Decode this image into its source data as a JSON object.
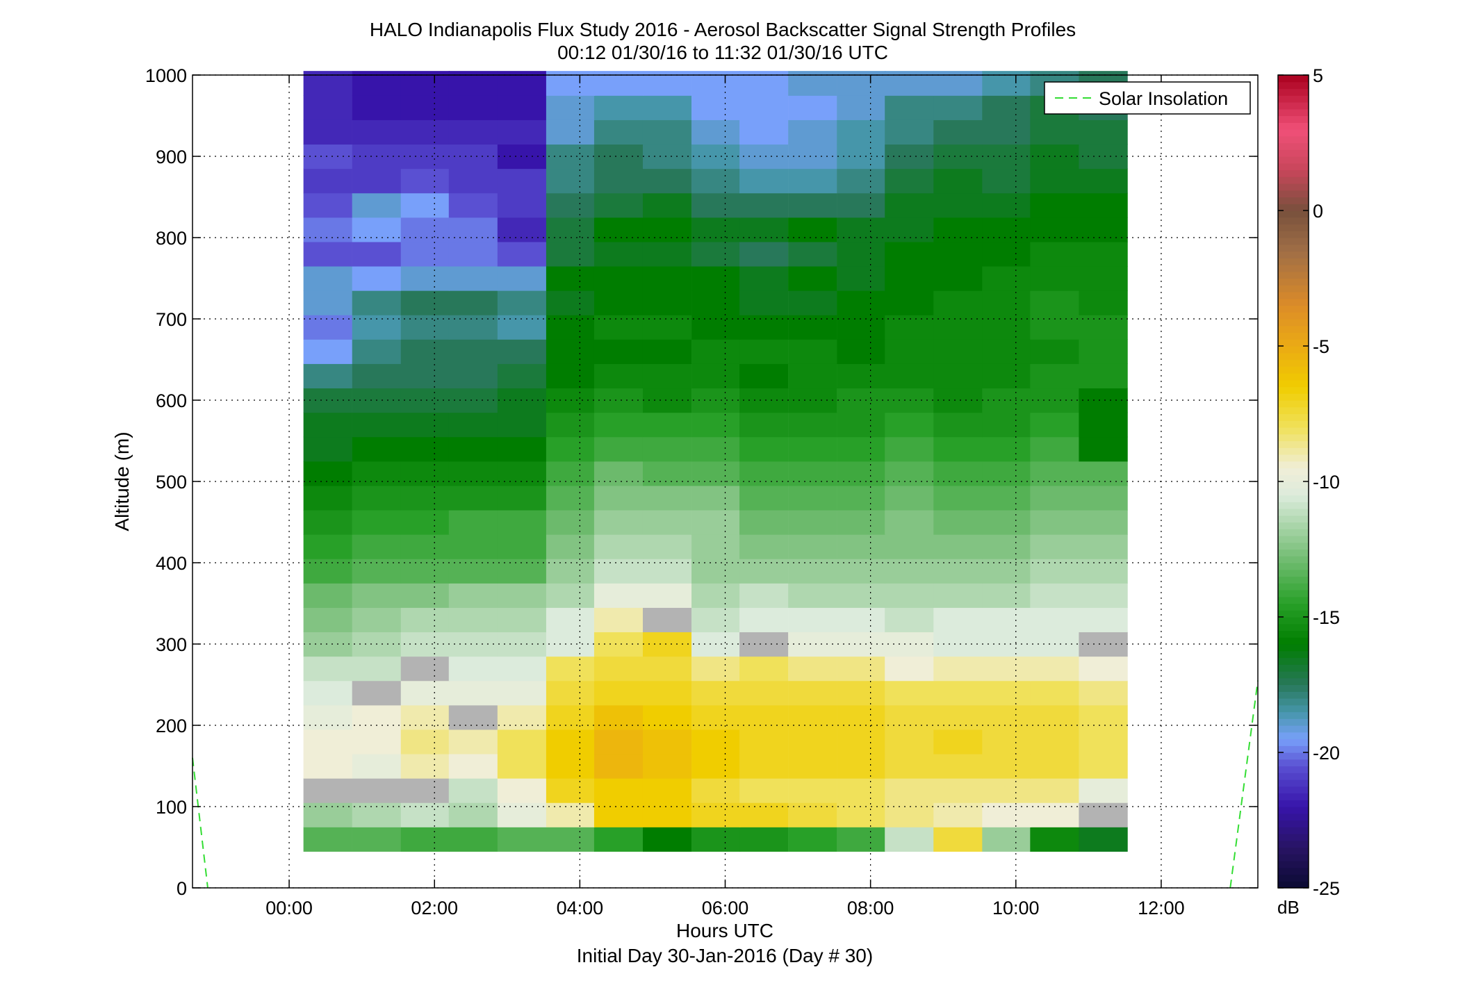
{
  "title_line1": "HALO Indianapolis Flux Study 2016 - Aerosol Backscatter Signal Strength Profiles",
  "title_line2": "00:12 01/30/16 to 11:32 01/30/16  UTC",
  "colorbar_unit": "dB",
  "colors": {
    "axes": "#000000",
    "grid": "#000000",
    "missing": "#b3b3b3",
    "solar_line": "#33dd33"
  },
  "chart_data": {
    "type": "heatmap",
    "title": "HALO Indianapolis Flux Study 2016 - Aerosol Backscatter Signal Strength Profiles",
    "subtitle": "00:12 01/30/16 to 11:32 01/30/16  UTC",
    "xlabel": "Hours UTC",
    "xlabel2": "Initial Day 30-Jan-2016 (Day # 30)",
    "ylabel": "Altitude (m)",
    "xlim": [
      -1.33,
      13.33
    ],
    "ylim": [
      0,
      1000
    ],
    "x_ticks": [
      0,
      2,
      4,
      6,
      8,
      10,
      12
    ],
    "x_tick_labels": [
      "00:00",
      "02:00",
      "04:00",
      "06:00",
      "08:00",
      "10:00",
      "12:00"
    ],
    "y_ticks": [
      0,
      100,
      200,
      300,
      400,
      500,
      600,
      700,
      800,
      900,
      1000
    ],
    "y_tick_labels": [
      "0",
      "100",
      "200",
      "300",
      "400",
      "500",
      "600",
      "700",
      "800",
      "900",
      "1000"
    ],
    "grid": true,
    "legend": {
      "placement": "top-right",
      "entries": [
        "Solar Insolation"
      ]
    },
    "colorbar": {
      "range": [
        -25,
        5
      ],
      "unit": "dB",
      "ticks": [
        -25,
        -20,
        -15,
        -10,
        -5,
        0,
        5
      ],
      "tick_labels": [
        "-25",
        "-20",
        "-15",
        "-10",
        "-5",
        "0",
        "5"
      ]
    },
    "x_bin_width_hours": 0.6667,
    "x_centers": [
      0.53,
      1.2,
      1.87,
      2.53,
      3.2,
      3.87,
      4.53,
      5.2,
      5.87,
      6.53,
      7.2,
      7.87,
      8.53,
      9.2,
      9.87,
      10.53,
      11.2
    ],
    "y_bin_height_m": 30,
    "y_centers": [
      60,
      90,
      120,
      150,
      180,
      210,
      240,
      270,
      300,
      330,
      360,
      390,
      420,
      450,
      480,
      510,
      540,
      570,
      600,
      630,
      660,
      690,
      720,
      750,
      780,
      810,
      840,
      870,
      900,
      930,
      960,
      990
    ],
    "missing_value": null,
    "values_db": [
      [
        -13.5,
        -13.5,
        -14,
        -14,
        -13.5,
        -13.5,
        -14.5,
        -16,
        -15,
        -15,
        -14.5,
        -14,
        -11,
        -7.5,
        -12,
        -15.5,
        -16.5
      ],
      [
        -12,
        -11.5,
        -11,
        -11.5,
        -10,
        -9,
        -6.5,
        -6.5,
        -7,
        -7,
        -7.5,
        -8,
        -8.5,
        -9,
        -9.5,
        -9.5,
        null
      ],
      [
        null,
        null,
        null,
        -11,
        -9.5,
        -7,
        -6.5,
        -6.5,
        -7.5,
        -8,
        -8,
        -8,
        -8.5,
        -8.5,
        -8.5,
        -8.5,
        -10
      ],
      [
        -9.5,
        -10,
        -9,
        -9.5,
        -8,
        -6.5,
        -5.5,
        -6,
        -6.5,
        -7,
        -7,
        -7,
        -7.5,
        -7.5,
        -7.5,
        -7.5,
        -8
      ],
      [
        -9.5,
        -9.5,
        -8.5,
        -9,
        -8,
        -6.5,
        -5.5,
        -6,
        -6.5,
        -7,
        -7,
        -7,
        -7.5,
        -7,
        -7.5,
        -7.5,
        -8
      ],
      [
        -10,
        -9.5,
        -9,
        null,
        -9,
        -7,
        -6,
        -6.5,
        -7,
        -7,
        -7,
        -7,
        -7.5,
        -7.5,
        -7.5,
        -7.5,
        -8
      ],
      [
        -10.5,
        null,
        -10,
        -10,
        -10,
        -7.5,
        -7,
        -7,
        -7.5,
        -7.5,
        -7.5,
        -7.5,
        -8,
        -8,
        -8,
        -8,
        -8.5
      ],
      [
        -11,
        -11,
        null,
        -10.5,
        -10.5,
        -8,
        -7.5,
        -7.5,
        -8.5,
        -8,
        -8.5,
        -8.5,
        -9.5,
        -9,
        -9,
        -9,
        -9.5
      ],
      [
        -12,
        -11.5,
        -11,
        -11,
        -11,
        -10.5,
        -8,
        -7,
        -10.5,
        null,
        -10,
        -10,
        -10,
        -10.5,
        -10.5,
        -10.5,
        null
      ],
      [
        -12.5,
        -12,
        -11.5,
        -11.5,
        -11.5,
        -10.5,
        -9,
        null,
        -11,
        -10.5,
        -10.5,
        -10.5,
        -11,
        -10.5,
        -10.5,
        -10.5,
        -10.5
      ],
      [
        -13,
        -12.5,
        -12.5,
        -12,
        -12,
        -11.5,
        -10,
        -10,
        -11.5,
        -11,
        -11.5,
        -11.5,
        -11.5,
        -11.5,
        -11.5,
        -11,
        -11
      ],
      [
        -14,
        -13.5,
        -13.5,
        -13.5,
        -13.5,
        -12,
        -11,
        -11,
        -12,
        -12,
        -12,
        -12,
        -12,
        -12,
        -12,
        -11.5,
        -11.5
      ],
      [
        -14.5,
        -14,
        -14,
        -14,
        -14,
        -12.5,
        -11.5,
        -11.5,
        -12,
        -12.5,
        -12.5,
        -12.5,
        -12.5,
        -12.5,
        -12.5,
        -12,
        -12
      ],
      [
        -15,
        -14.5,
        -14.5,
        -14,
        -14,
        -13,
        -12,
        -12,
        -12,
        -13,
        -13,
        -13,
        -12.5,
        -13,
        -13,
        -12.5,
        -12.5
      ],
      [
        -15.5,
        -15,
        -15,
        -15,
        -15,
        -13.5,
        -12.5,
        -12.5,
        -12.5,
        -13.5,
        -13.5,
        -13.5,
        -13,
        -13.5,
        -13.5,
        -13,
        -13
      ],
      [
        -16,
        -15.5,
        -15.5,
        -15.5,
        -15.5,
        -14,
        -13,
        -13.5,
        -13.5,
        -14,
        -14,
        -14,
        -13.5,
        -14,
        -14,
        -13.5,
        -13.5
      ],
      [
        -16.5,
        -16,
        -16,
        -16,
        -16,
        -14.5,
        -14,
        -14,
        -14,
        -14.5,
        -14.5,
        -14.5,
        -14,
        -14.5,
        -14.5,
        -14,
        -16
      ],
      [
        -16.5,
        -16.5,
        -16.5,
        -16.5,
        -16.5,
        -15,
        -14.5,
        -14.5,
        -14.5,
        -15,
        -15,
        -15,
        -14.5,
        -15,
        -15,
        -14.5,
        -16
      ],
      [
        -17,
        -17,
        -17,
        -17,
        -16.5,
        -15.5,
        -15,
        -15.5,
        -15,
        -15.5,
        -15.5,
        -15,
        -15,
        -15.5,
        -15,
        -15,
        -16
      ],
      [
        -18,
        -17.5,
        -17.5,
        -17.5,
        -17,
        -16,
        -15.5,
        -15.5,
        -15.5,
        -16,
        -15.5,
        -15.5,
        -15.5,
        -15.5,
        -15.5,
        -15,
        -15
      ],
      [
        -19.5,
        -18,
        -17.5,
        -17.5,
        -17.5,
        -16,
        -16,
        -16,
        -15.5,
        -15.5,
        -15.5,
        -16,
        -15.5,
        -15.5,
        -15.5,
        -15.5,
        -15
      ],
      [
        -20,
        -18.5,
        -18,
        -18,
        -18.5,
        -16,
        -15.5,
        -15.5,
        -16,
        -16,
        -16,
        -16,
        -15.5,
        -15.5,
        -15.5,
        -15,
        -15
      ],
      [
        -19,
        -18,
        -17.5,
        -17.5,
        -18,
        -16.5,
        -16,
        -16,
        -16,
        -16.5,
        -16.5,
        -16,
        -16,
        -15.5,
        -15.5,
        -15,
        -15.5
      ],
      [
        -19,
        -19.5,
        -19,
        -19,
        -19,
        -16,
        -16,
        -16,
        -16,
        -16.5,
        -16,
        -16.5,
        -16,
        -16,
        -15.5,
        -15.5,
        -15.5
      ],
      [
        -20.5,
        -20.5,
        -20,
        -20,
        -20.5,
        -17,
        -16.5,
        -16.5,
        -17,
        -17.5,
        -17,
        -16.5,
        -16,
        -16,
        -16,
        -15.5,
        -15.5
      ],
      [
        -20,
        -19.5,
        -20,
        -20,
        -21.5,
        -17,
        -16,
        -16,
        -16.5,
        -16.5,
        -16,
        -16.5,
        -16.5,
        -16,
        -16,
        -16,
        -16
      ],
      [
        -20.5,
        -19,
        -19.5,
        -20.5,
        -21,
        -17.5,
        -17,
        -16.5,
        -17.5,
        -17.5,
        -17.5,
        -17.5,
        -16.5,
        -16.5,
        -16.5,
        -16,
        -16
      ],
      [
        -21,
        -21,
        -20.5,
        -21,
        -21,
        -18,
        -17.5,
        -17.5,
        -18,
        -18.5,
        -18.5,
        -18,
        -17,
        -16.5,
        -17,
        -16.5,
        -16.5
      ],
      [
        -20.5,
        -21,
        -21,
        -21,
        -22,
        -18,
        -17.5,
        -18,
        -18.5,
        -19,
        -19,
        -18.5,
        -17.5,
        -17,
        -17,
        -16.5,
        -17
      ],
      [
        -21.5,
        -21.5,
        -21.5,
        -21.5,
        -21.5,
        -19,
        -18,
        -18,
        -19,
        -19.5,
        -19,
        -18.5,
        -18,
        -17.5,
        -17.5,
        -17,
        -17
      ],
      [
        -21.5,
        -22,
        -22,
        -22,
        -22,
        -19,
        -18.5,
        -18.5,
        -19.5,
        -19.5,
        -19.5,
        -19,
        -18,
        -18,
        -17.5,
        -17,
        -17.5
      ],
      [
        -21.5,
        -22,
        -22,
        -22,
        -22,
        -19.5,
        -19.5,
        -19.5,
        -19.5,
        -19.5,
        -19,
        -19,
        -19,
        -19,
        -18.5,
        -18,
        -17.5
      ]
    ],
    "solar_insolation_curve": {
      "x_hours": [
        -1.33,
        -1.12,
        12.95,
        13.33
      ],
      "y_altitude": [
        160,
        0,
        0,
        255
      ]
    }
  }
}
